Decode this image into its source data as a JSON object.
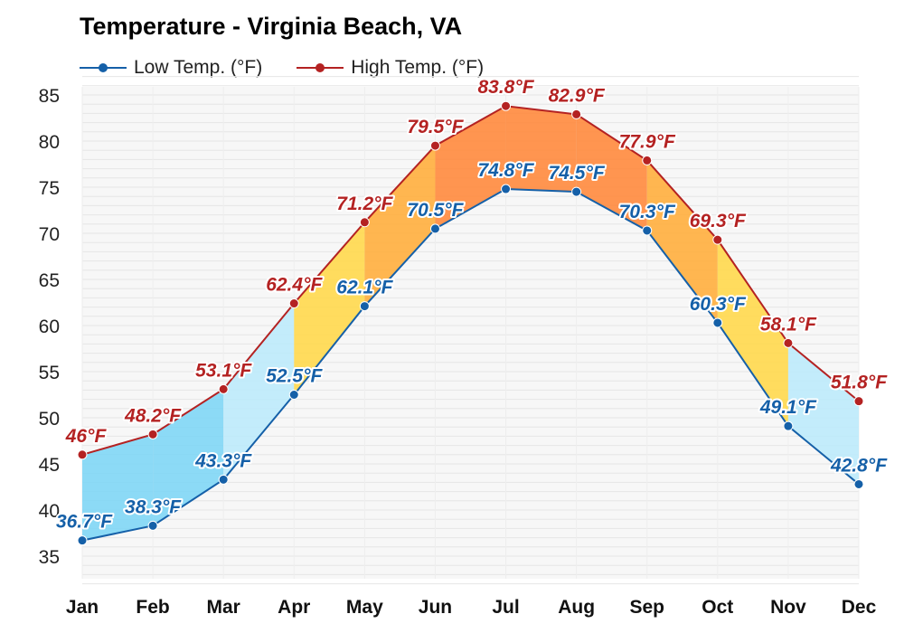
{
  "title": "Temperature - Virginia Beach, VA",
  "legend": {
    "low_label": "Low Temp. (°F)",
    "high_label": "High Temp. (°F)"
  },
  "colors": {
    "low": "#1560a8",
    "high": "#b42222",
    "fill_cold": "#7fd6f5",
    "fill_cool": "#bdeafb",
    "fill_mild": "#ffd84d",
    "fill_warm": "#ffae3d",
    "fill_hot": "#ff8a3d",
    "grid": "#e6e6e6",
    "plot_bg": "#f7f7f7"
  },
  "chart_data": {
    "type": "area",
    "title": "Temperature - Virginia Beach, VA",
    "categories": [
      "Jan",
      "Feb",
      "Mar",
      "Apr",
      "May",
      "Jun",
      "Jul",
      "Aug",
      "Sep",
      "Oct",
      "Nov",
      "Dec"
    ],
    "series": [
      {
        "name": "Low Temp. (°F)",
        "values": [
          36.7,
          38.3,
          43.3,
          52.5,
          62.1,
          70.5,
          74.8,
          74.5,
          70.3,
          60.3,
          49.1,
          42.8
        ],
        "labels": [
          "36.7°F",
          "38.3°F",
          "43.3°F",
          "52.5°F",
          "62.1°F",
          "70.5°F",
          "74.8°F",
          "74.5°F",
          "70.3°F",
          "60.3°F",
          "49.1°F",
          "42.8°F"
        ]
      },
      {
        "name": "High Temp. (°F)",
        "values": [
          46,
          48.2,
          53.1,
          62.4,
          71.2,
          79.5,
          83.8,
          82.9,
          77.9,
          69.3,
          58.1,
          51.8
        ],
        "labels": [
          "46°F",
          "48.2°F",
          "53.1°F",
          "62.4°F",
          "71.2°F",
          "79.5°F",
          "83.8°F",
          "82.9°F",
          "77.9°F",
          "69.3°F",
          "58.1°F",
          "51.8°F"
        ]
      }
    ],
    "yticks": [
      "35",
      "40",
      "45",
      "50",
      "55",
      "60",
      "65",
      "70",
      "75",
      "80",
      "85"
    ],
    "ylim": [
      32,
      87
    ],
    "grid": true,
    "legend_position": "top-left"
  }
}
